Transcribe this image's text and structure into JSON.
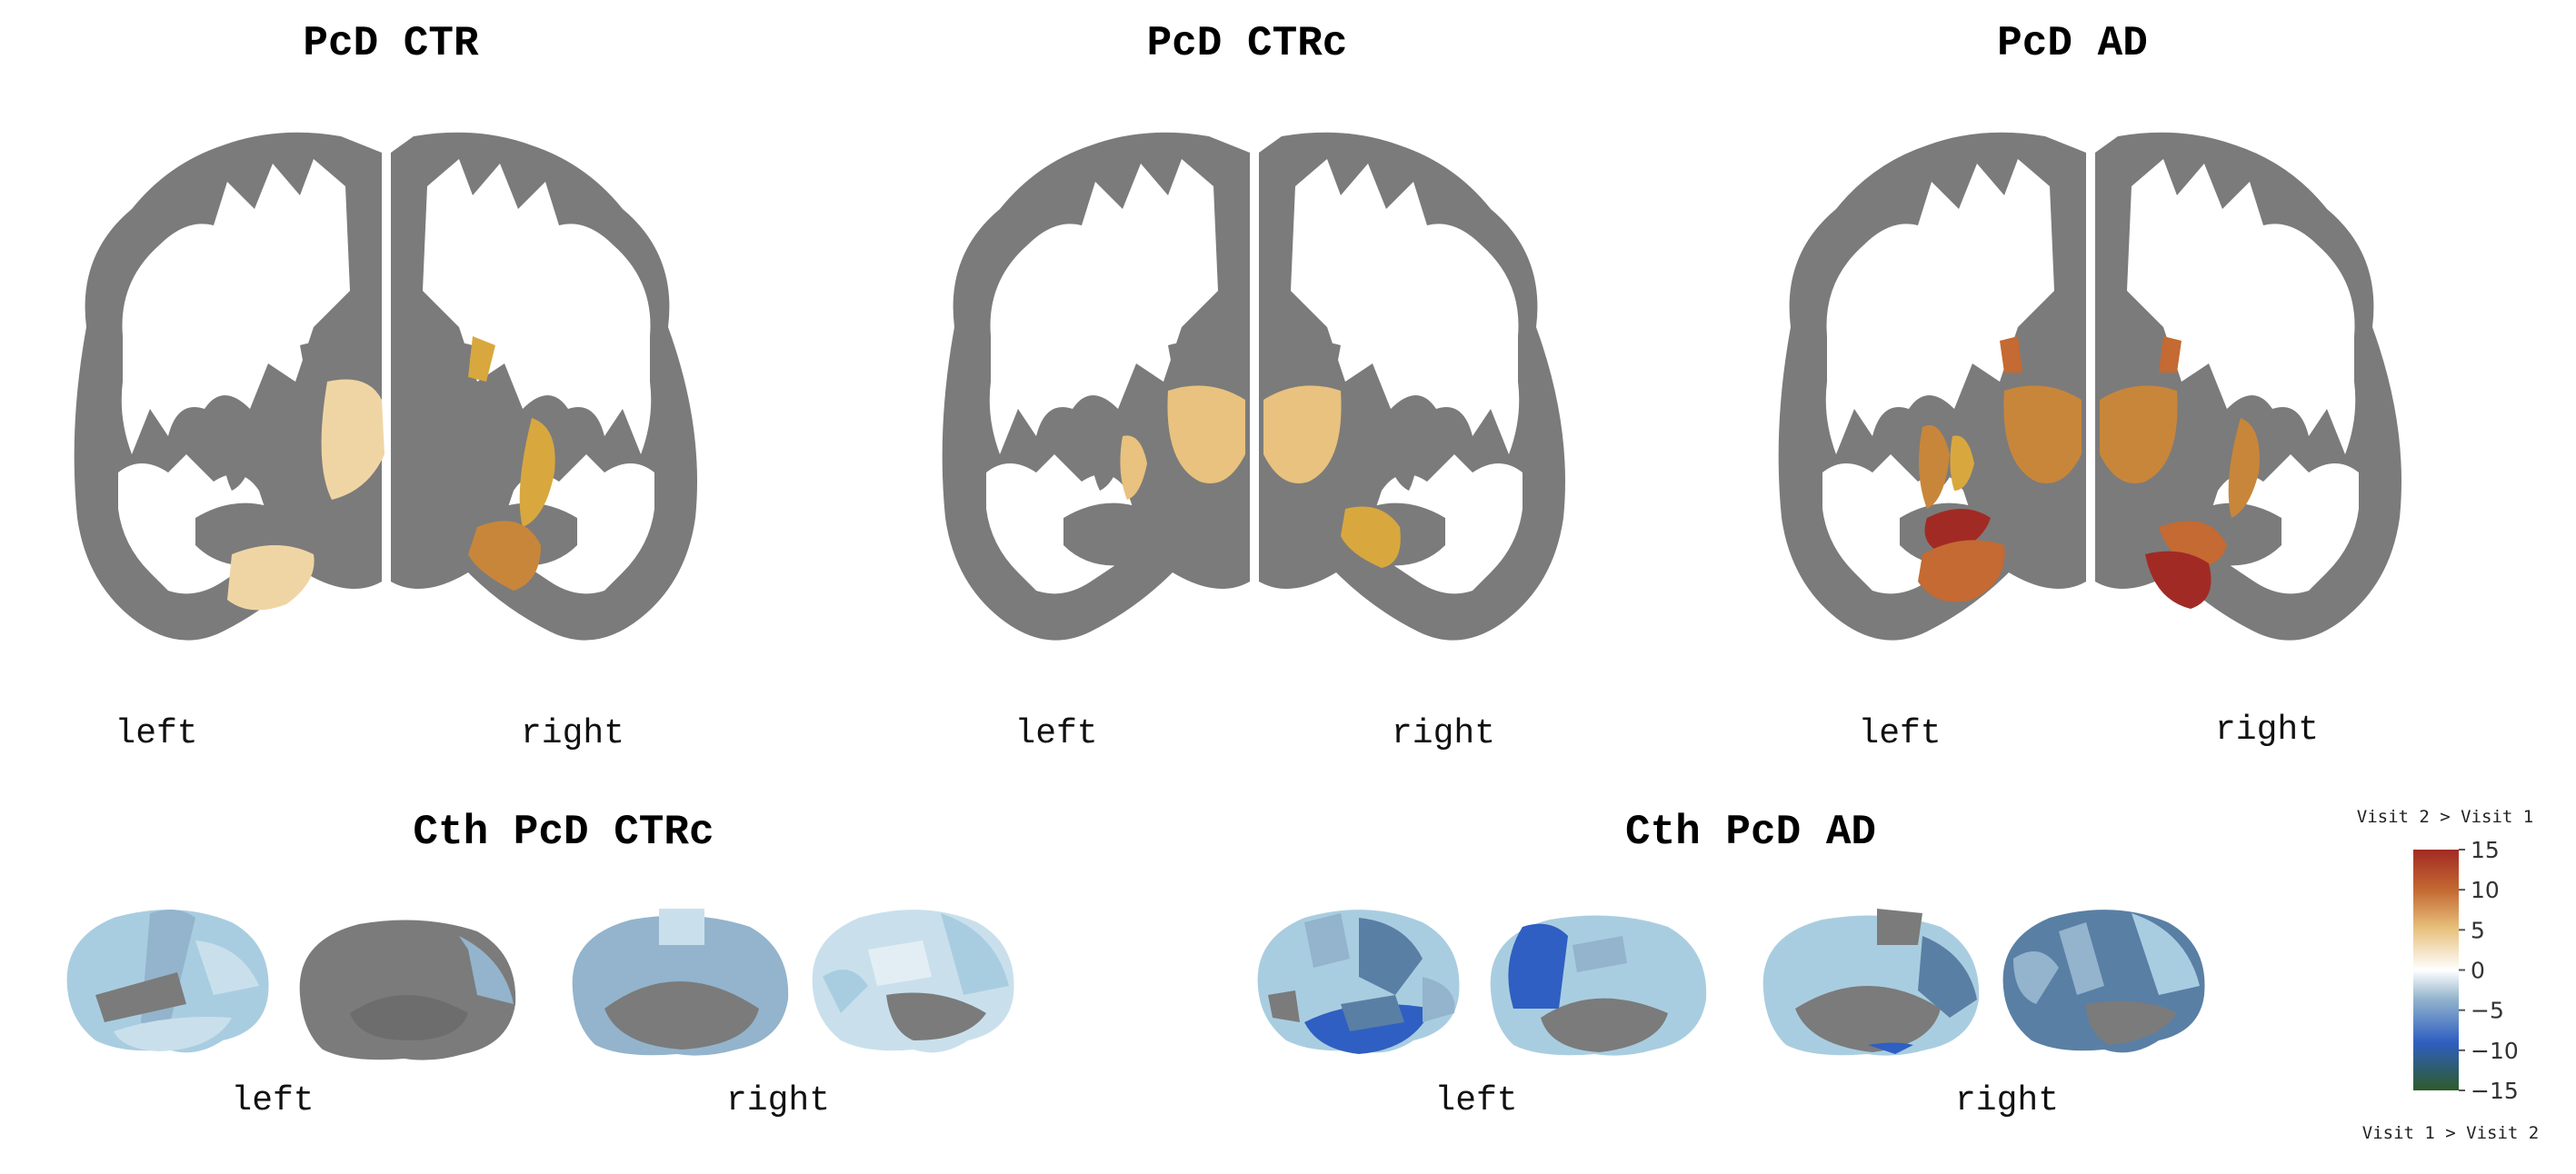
{
  "panels": [
    {
      "title": "PcD CTR",
      "left_label": "left",
      "right_label": "right"
    },
    {
      "title": "PcD CTRc",
      "left_label": "left",
      "right_label": "right"
    },
    {
      "title": "PcD AD",
      "left_label": "left",
      "right_label": "right"
    },
    {
      "title": "Cth PcD CTRc",
      "left_label": "left",
      "right_label": "right"
    },
    {
      "title": "Cth PcD AD",
      "left_label": "left",
      "right_label": "right"
    }
  ],
  "legend": {
    "top_caption": "Visit 2 > Visit 1",
    "bottom_caption": "Visit 1 > Visit 2",
    "ticks": [
      "15",
      "10",
      "5",
      "0",
      "−5",
      "−10",
      "−15"
    ],
    "tick_values": [
      15,
      10,
      5,
      0,
      -5,
      -10,
      -15
    ],
    "range": [
      -15,
      15
    ]
  },
  "colors": {
    "tissue_gray": "#7b7b7b",
    "wm_white": "#ffffff",
    "pale_tan": "#f0d5a4",
    "tan": "#e8c27e",
    "gold": "#d8a83f",
    "amber": "#c8863a",
    "orange_brown": "#c46a32",
    "dark_red": "#a22a24",
    "pale_blue": "#c9e0ec",
    "light_blue": "#a9cde0",
    "mid_blue": "#93b4cc",
    "slate_blue": "#5a7fa5",
    "bright_blue": "#2f5fc2",
    "dark_green": "#2e5b2a"
  }
}
